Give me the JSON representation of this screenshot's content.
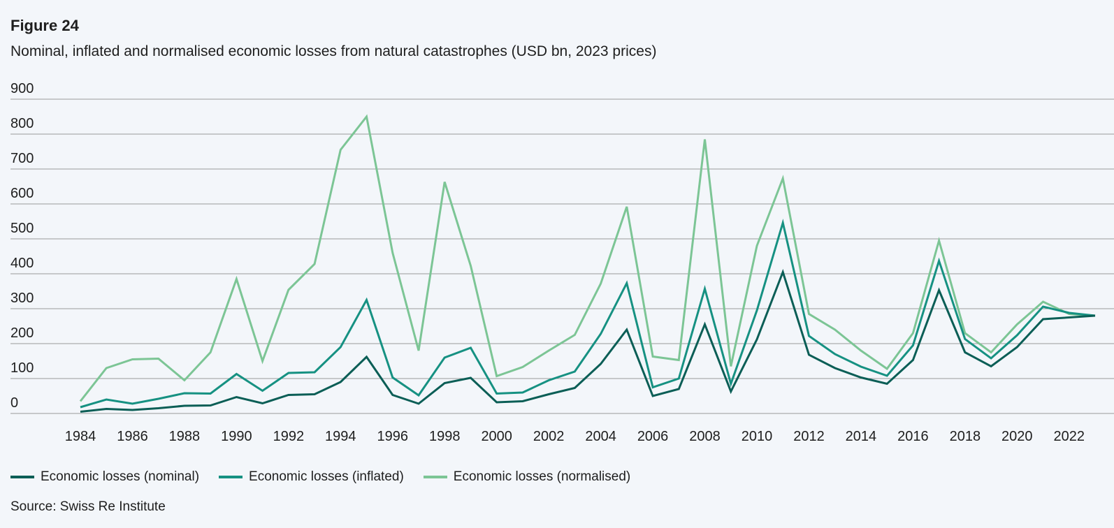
{
  "figure_label": "Figure 24",
  "title": "Nominal, inflated and normalised economic losses from natural catastrophes (USD bn, 2023 prices)",
  "source": "Source: Swiss Re Institute",
  "chart_data": {
    "type": "line",
    "title": "Nominal, inflated and normalised economic losses from natural catastrophes (USD bn, 2023 prices)",
    "xlabel": "",
    "ylabel": "",
    "ylim": [
      0,
      900
    ],
    "yticks": [
      0,
      100,
      200,
      300,
      400,
      500,
      600,
      700,
      800,
      900
    ],
    "xticks": [
      1984,
      1986,
      1988,
      1990,
      1992,
      1994,
      1996,
      1998,
      2000,
      2002,
      2004,
      2006,
      2008,
      2010,
      2012,
      2014,
      2016,
      2018,
      2020,
      2022
    ],
    "x": [
      1984,
      1985,
      1986,
      1987,
      1988,
      1989,
      1990,
      1991,
      1992,
      1993,
      1994,
      1995,
      1996,
      1997,
      1998,
      1999,
      2000,
      2001,
      2002,
      2003,
      2004,
      2005,
      2006,
      2007,
      2008,
      2009,
      2010,
      2011,
      2012,
      2013,
      2014,
      2015,
      2016,
      2017,
      2018,
      2019,
      2020,
      2021,
      2022,
      2023
    ],
    "grid": true,
    "legend_position": "bottom",
    "series": [
      {
        "name": "Economic losses (nominal)",
        "color": "#0b5e56",
        "values": [
          5,
          13,
          10,
          15,
          22,
          23,
          47,
          29,
          53,
          55,
          90,
          162,
          53,
          28,
          87,
          102,
          32,
          35,
          55,
          73,
          142,
          240,
          50,
          70,
          255,
          63,
          212,
          405,
          168,
          130,
          103,
          85,
          153,
          353,
          175,
          135,
          190,
          270,
          275,
          280
        ]
      },
      {
        "name": "Economic losses (inflated)",
        "color": "#169182",
        "values": [
          18,
          40,
          28,
          42,
          58,
          57,
          113,
          65,
          116,
          118,
          190,
          325,
          103,
          52,
          160,
          188,
          57,
          60,
          95,
          120,
          228,
          373,
          75,
          100,
          357,
          85,
          295,
          546,
          222,
          170,
          134,
          108,
          195,
          437,
          213,
          158,
          224,
          306,
          288,
          280
        ]
      },
      {
        "name": "Economic losses (normalised)",
        "color": "#7cc595",
        "values": [
          35,
          130,
          155,
          157,
          95,
          175,
          385,
          150,
          354,
          428,
          755,
          850,
          460,
          180,
          663,
          423,
          107,
          133,
          180,
          225,
          372,
          592,
          163,
          153,
          785,
          135,
          480,
          673,
          285,
          240,
          180,
          128,
          230,
          495,
          230,
          175,
          255,
          320,
          285,
          280
        ]
      }
    ]
  }
}
